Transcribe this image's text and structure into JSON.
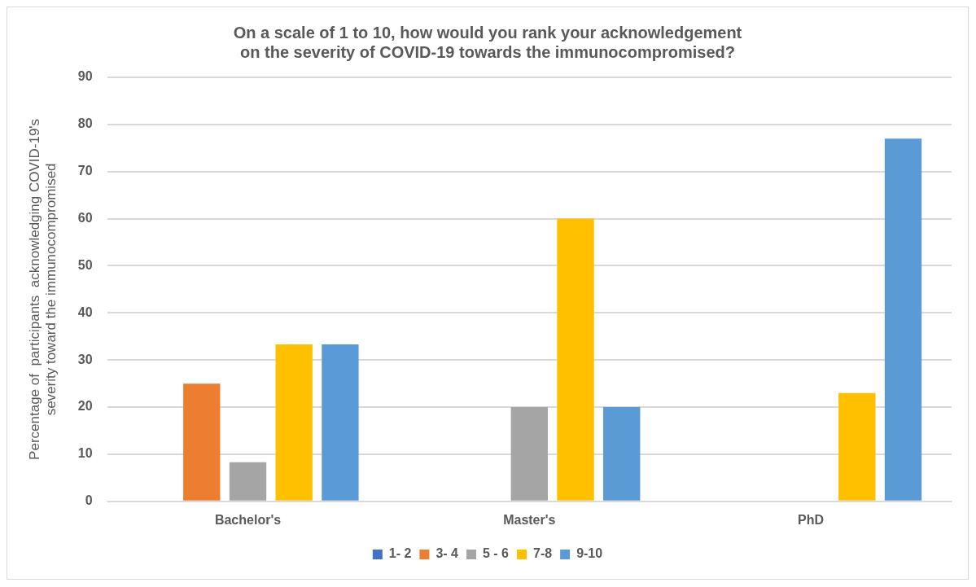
{
  "chart_data": {
    "type": "bar",
    "title": "On a scale of 1 to 10, how would you rank your acknowledgement\non the severity of COVID-19 towards the immunocompromised?",
    "ylabel": "Percentage of  participants  acknowledging COVID-19's\nseverity toward the immunocompromised",
    "categories": [
      "Bachelor's",
      "Master's",
      "PhD"
    ],
    "series": [
      {
        "name": "1- 2",
        "color": "#4472c4",
        "values": [
          0,
          0,
          0
        ]
      },
      {
        "name": "3- 4",
        "color": "#ed7d31",
        "values": [
          25,
          0,
          0
        ]
      },
      {
        "name": "5 - 6",
        "color": "#a5a5a5",
        "values": [
          8.3,
          20,
          0
        ]
      },
      {
        "name": "7-8",
        "color": "#ffc000",
        "values": [
          33.3,
          60,
          23
        ]
      },
      {
        "name": "9-10",
        "color": "#5b9bd5",
        "values": [
          33.3,
          20,
          77
        ]
      }
    ],
    "ylim": [
      0,
      90
    ],
    "yticks": [
      0,
      10,
      20,
      30,
      40,
      50,
      60,
      70,
      80,
      90
    ],
    "grid": "y",
    "legend": "bottom"
  }
}
